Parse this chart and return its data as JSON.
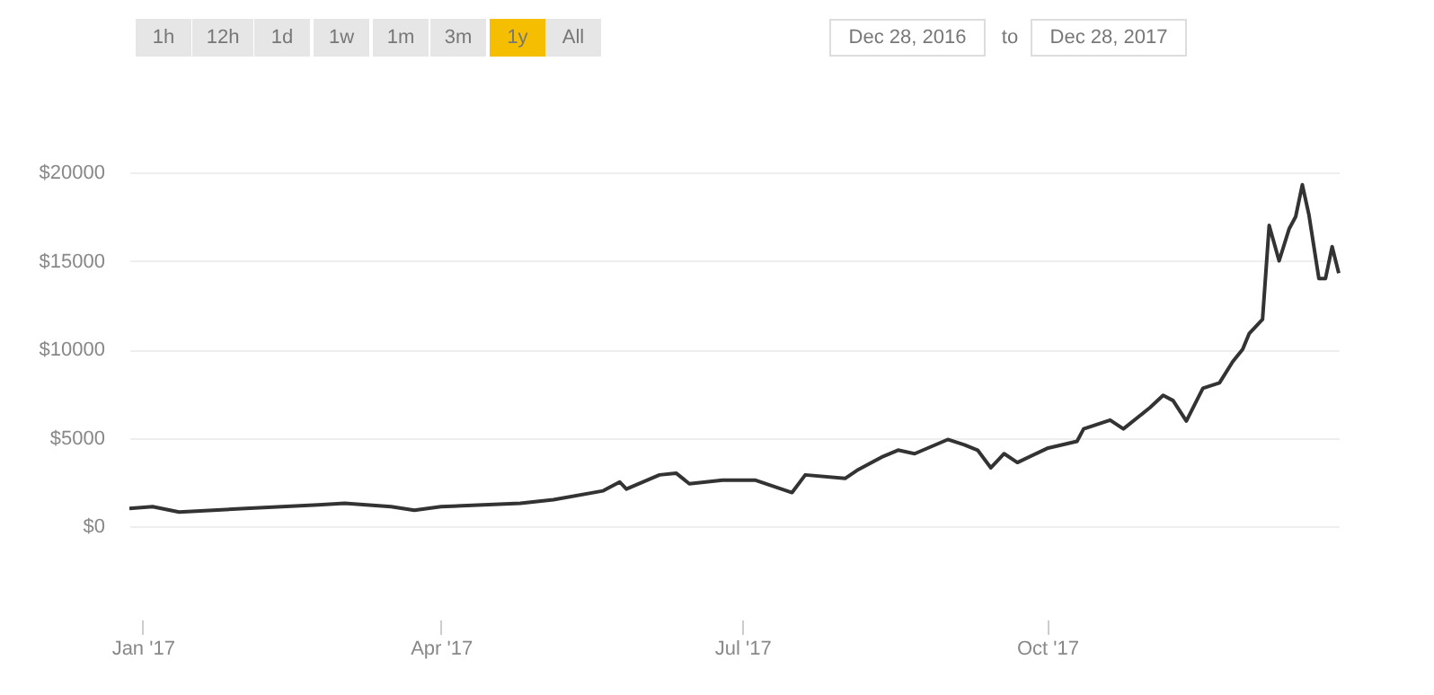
{
  "chart_data": {
    "type": "line",
    "annotations": [
      "1h",
      "12h",
      "1d",
      "1w",
      "1m",
      "3m",
      "1y",
      "All",
      "Dec 28, 2016",
      "to",
      "Dec 28, 2017"
    ],
    "x": [
      "2016-12-28",
      "2017-01-04",
      "2017-01-12",
      "2017-02-01",
      "2017-02-23",
      "2017-03-03",
      "2017-03-17",
      "2017-03-24",
      "2017-04-01",
      "2017-04-25",
      "2017-05-05",
      "2017-05-20",
      "2017-05-25",
      "2017-05-27",
      "2017-06-06",
      "2017-06-11",
      "2017-06-15",
      "2017-06-25",
      "2017-07-05",
      "2017-07-16",
      "2017-07-20",
      "2017-08-01",
      "2017-08-05",
      "2017-08-12",
      "2017-08-17",
      "2017-08-22",
      "2017-09-01",
      "2017-09-06",
      "2017-09-10",
      "2017-09-14",
      "2017-09-18",
      "2017-09-22",
      "2017-10-01",
      "2017-10-10",
      "2017-10-12",
      "2017-10-20",
      "2017-10-24",
      "2017-11-01",
      "2017-11-05",
      "2017-11-08",
      "2017-11-12",
      "2017-11-17",
      "2017-11-22",
      "2017-11-26",
      "2017-11-29",
      "2017-12-01",
      "2017-12-05",
      "2017-12-07",
      "2017-12-10",
      "2017-12-13",
      "2017-12-15",
      "2017-12-17",
      "2017-12-19",
      "2017-12-22",
      "2017-12-24",
      "2017-12-26",
      "2017-12-28"
    ],
    "series": [
      {
        "color": "#333333",
        "values": [
          1000,
          1100,
          800,
          1000,
          1200,
          1300,
          1100,
          900,
          1100,
          1300,
          1500,
          2000,
          2500,
          2100,
          2900,
          3000,
          2400,
          2600,
          2600,
          1900,
          2900,
          2700,
          3200,
          3900,
          4300,
          4100,
          4900,
          4600,
          4300,
          3300,
          4100,
          3600,
          4400,
          4800,
          5500,
          6000,
          5500,
          6700,
          7400,
          7100,
          5950,
          7800,
          8100,
          9300,
          10000,
          10900,
          11700,
          17000,
          15000,
          16800,
          17500,
          19300,
          17600,
          14000,
          14000,
          15800,
          14300
        ]
      }
    ],
    "xlim": [
      "2016-12-28",
      "2017-12-28"
    ],
    "xticks": [
      {
        "value": "2017-01-01",
        "label": "Jan '17"
      },
      {
        "value": "2017-04-01",
        "label": "Apr '17"
      },
      {
        "value": "2017-07-01",
        "label": "Jul '17"
      },
      {
        "value": "2017-10-01",
        "label": "Oct '17"
      }
    ],
    "ylim": [
      0,
      20000
    ],
    "yticks": [
      {
        "value": 0,
        "label": "$0"
      },
      {
        "value": 5000,
        "label": "$5000"
      },
      {
        "value": 10000,
        "label": "$10000"
      },
      {
        "value": 15000,
        "label": "$15000"
      },
      {
        "value": 20000,
        "label": "$20000"
      }
    ],
    "grid": "y",
    "legend": false,
    "marker": "none",
    "line_style": "solid"
  }
}
